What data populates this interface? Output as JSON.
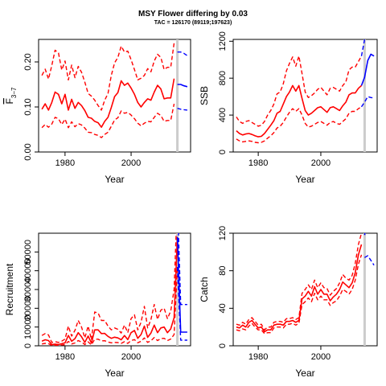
{
  "title": "MSY Flower differing by 0.03",
  "subtitle": "TAC = 126170 (89119;197623)",
  "colors": {
    "hist": "#ff0000",
    "proj": "#0000ff",
    "marker": "#cccccc"
  },
  "marker_year": 2014,
  "chart_data": [
    {
      "type": "line",
      "name": "F",
      "xlabel": "Year",
      "ylabel_main": "F",
      "ylabel_sub": "3−7",
      "xlim": [
        1972,
        2018
      ],
      "ylim": [
        0,
        0.25
      ],
      "xticks": [
        "1980",
        "2000"
      ],
      "yticks": [
        "0.00",
        "0.10",
        "0.20"
      ],
      "x": [
        1973,
        1974,
        1975,
        1976,
        1977,
        1978,
        1979,
        1980,
        1981,
        1982,
        1983,
        1984,
        1985,
        1986,
        1987,
        1988,
        1989,
        1990,
        1991,
        1992,
        1993,
        1994,
        1995,
        1996,
        1997,
        1998,
        1999,
        2000,
        2001,
        2002,
        2003,
        2004,
        2005,
        2006,
        2007,
        2008,
        2009,
        2010,
        2011,
        2012,
        2013
      ],
      "series": [
        {
          "role": "median",
          "period": "hist",
          "values": [
            0.095,
            0.107,
            0.093,
            0.11,
            0.133,
            0.128,
            0.107,
            0.128,
            0.093,
            0.117,
            0.097,
            0.11,
            0.103,
            0.092,
            0.077,
            0.075,
            0.068,
            0.065,
            0.055,
            0.068,
            0.077,
            0.099,
            0.123,
            0.132,
            0.158,
            0.148,
            0.153,
            0.142,
            0.128,
            0.11,
            0.1,
            0.11,
            0.118,
            0.115,
            0.133,
            0.148,
            0.14,
            0.118,
            0.12,
            0.12,
            0.163
          ]
        },
        {
          "role": "lower",
          "period": "hist",
          "values": [
            0.054,
            0.061,
            0.055,
            0.062,
            0.077,
            0.074,
            0.061,
            0.073,
            0.054,
            0.067,
            0.056,
            0.063,
            0.06,
            0.053,
            0.044,
            0.043,
            0.039,
            0.037,
            0.032,
            0.039,
            0.044,
            0.057,
            0.071,
            0.076,
            0.091,
            0.086,
            0.088,
            0.082,
            0.074,
            0.064,
            0.058,
            0.064,
            0.068,
            0.067,
            0.077,
            0.086,
            0.081,
            0.068,
            0.07,
            0.07,
            0.107
          ]
        },
        {
          "role": "upper",
          "period": "hist",
          "values": [
            0.17,
            0.184,
            0.162,
            0.192,
            0.226,
            0.22,
            0.182,
            0.202,
            0.16,
            0.193,
            0.165,
            0.19,
            0.177,
            0.155,
            0.13,
            0.124,
            0.115,
            0.103,
            0.093,
            0.115,
            0.13,
            0.17,
            0.198,
            0.21,
            0.235,
            0.222,
            0.224,
            0.205,
            0.183,
            0.16,
            0.164,
            0.17,
            0.185,
            0.178,
            0.202,
            0.217,
            0.21,
            0.183,
            0.188,
            0.188,
            0.242
          ]
        }
      ],
      "proj_x": [
        2014,
        2015,
        2016,
        2017
      ],
      "proj_series": [
        {
          "role": "median",
          "values": [
            0.15,
            0.15,
            0.147,
            0.145
          ]
        },
        {
          "role": "lower",
          "values": [
            0.097,
            0.095,
            0.094,
            0.093
          ]
        },
        {
          "role": "upper",
          "values": [
            0.222,
            0.222,
            0.219,
            0.214
          ]
        }
      ]
    },
    {
      "type": "line",
      "name": "SSB",
      "xlabel": "Year",
      "ylabel_main": "SSB",
      "xlim": [
        1972,
        2018
      ],
      "ylim": [
        0,
        1220
      ],
      "xticks": [
        "1980",
        "2000"
      ],
      "yticks": [
        "0",
        "400",
        "800",
        "1200"
      ],
      "x": [
        1973,
        1974,
        1975,
        1976,
        1977,
        1978,
        1979,
        1980,
        1981,
        1982,
        1983,
        1984,
        1985,
        1986,
        1987,
        1988,
        1989,
        1990,
        1991,
        1992,
        1993,
        1994,
        1995,
        1996,
        1997,
        1998,
        1999,
        2000,
        2001,
        2002,
        2003,
        2004,
        2005,
        2006,
        2007,
        2008,
        2009,
        2010,
        2011,
        2012,
        2013
      ],
      "series": [
        {
          "role": "median",
          "period": "hist",
          "values": [
            230,
            200,
            185,
            195,
            200,
            190,
            175,
            165,
            170,
            200,
            245,
            290,
            340,
            420,
            440,
            520,
            600,
            650,
            720,
            660,
            720,
            580,
            450,
            400,
            420,
            450,
            480,
            490,
            460,
            430,
            480,
            490,
            470,
            450,
            500,
            540,
            620,
            640,
            640,
            690,
            720
          ]
        },
        {
          "role": "lower",
          "period": "hist",
          "values": [
            140,
            120,
            110,
            115,
            120,
            115,
            105,
            100,
            105,
            120,
            150,
            175,
            210,
            260,
            280,
            320,
            380,
            430,
            470,
            440,
            470,
            400,
            310,
            270,
            280,
            300,
            320,
            330,
            310,
            290,
            320,
            330,
            310,
            300,
            330,
            360,
            420,
            440,
            440,
            470,
            490
          ]
        },
        {
          "role": "upper",
          "period": "hist",
          "values": [
            380,
            330,
            310,
            330,
            340,
            320,
            300,
            280,
            290,
            330,
            400,
            450,
            520,
            630,
            650,
            740,
            880,
            960,
            1030,
            930,
            1040,
            850,
            650,
            590,
            610,
            640,
            680,
            700,
            660,
            620,
            690,
            700,
            680,
            660,
            720,
            760,
            890,
            920,
            920,
            980,
            1040
          ]
        }
      ],
      "proj_x": [
        2013,
        2014,
        2015,
        2016,
        2017
      ],
      "proj_series": [
        {
          "role": "median",
          "values": [
            720,
            810,
            990,
            1060,
            1040
          ]
        },
        {
          "role": "lower",
          "values": [
            490,
            540,
            600,
            590,
            585
          ]
        },
        {
          "role": "upper",
          "values": [
            1040,
            1220,
            1400,
            1600,
            1800
          ]
        }
      ]
    },
    {
      "type": "line",
      "name": "Recruitment",
      "xlabel": "Year",
      "ylabel_main": "Recruitment",
      "xlim": [
        1972,
        2018
      ],
      "ylim": [
        0,
        60000
      ],
      "xticks": [
        "1980",
        "2000"
      ],
      "yticks": [
        "0",
        "10000",
        "20000",
        "30000",
        "40000",
        "50000"
      ],
      "x": [
        1973,
        1974,
        1975,
        1976,
        1977,
        1978,
        1979,
        1980,
        1981,
        1982,
        1983,
        1984,
        1985,
        1986,
        1987,
        1988,
        1989,
        1990,
        1991,
        1992,
        1993,
        1994,
        1995,
        1996,
        1997,
        1998,
        1999,
        2000,
        2001,
        2002,
        2003,
        2004,
        2005,
        2006,
        2007,
        2008,
        2009,
        2010,
        2011,
        2012,
        2013,
        2014
      ],
      "series": [
        {
          "role": "median",
          "period": "hist",
          "values": [
            2500,
            3200,
            2800,
            600,
            900,
            700,
            1100,
            1600,
            5500,
            2400,
            3800,
            7000,
            4800,
            1800,
            5200,
            1400,
            8500,
            8500,
            6500,
            6600,
            5000,
            4000,
            4600,
            4200,
            3200,
            5500,
            3300,
            7000,
            8200,
            4000,
            6000,
            10500,
            4500,
            6800,
            11000,
            7000,
            9500,
            10000,
            7000,
            9000,
            15000,
            58000
          ]
        },
        {
          "role": "lower",
          "period": "hist",
          "values": [
            1000,
            1300,
            1100,
            200,
            300,
            250,
            450,
            600,
            2300,
            1000,
            1500,
            2800,
            2000,
            700,
            2100,
            500,
            3500,
            3500,
            2600,
            2700,
            2000,
            1600,
            1800,
            1700,
            1300,
            2200,
            1300,
            2800,
            3300,
            1600,
            2400,
            4200,
            1800,
            2700,
            4400,
            2800,
            3800,
            4000,
            2800,
            3600,
            6000,
            42000
          ]
        },
        {
          "role": "upper",
          "period": "hist",
          "values": [
            5500,
            6500,
            5800,
            1800,
            2200,
            1800,
            2500,
            3600,
            10500,
            5200,
            8200,
            13500,
            10000,
            4200,
            10500,
            3200,
            18000,
            17500,
            13500,
            13500,
            10500,
            8500,
            9500,
            8800,
            6800,
            11000,
            7000,
            14500,
            16500,
            8500,
            12500,
            21000,
            9500,
            14000,
            22000,
            14000,
            19000,
            20000,
            14500,
            18500,
            30000,
            78000
          ]
        }
      ],
      "proj_x": [
        2014,
        2015,
        2016,
        2017
      ],
      "proj_series": [
        {
          "role": "median",
          "values": [
            58000,
            7300,
            7300,
            7300
          ]
        },
        {
          "role": "lower",
          "values": [
            42000,
            3000,
            3000,
            3000
          ]
        },
        {
          "role": "upper",
          "values": [
            78000,
            22000,
            22000,
            22000
          ]
        }
      ]
    },
    {
      "type": "line",
      "name": "Catch",
      "xlabel": "Year",
      "ylabel_main": "Catch",
      "xlim": [
        1972,
        2018
      ],
      "ylim": [
        0,
        120
      ],
      "xticks": [
        "1980",
        "2000"
      ],
      "yticks": [
        "0",
        "40",
        "80",
        "120"
      ],
      "x": [
        1973,
        1974,
        1975,
        1976,
        1977,
        1978,
        1979,
        1980,
        1981,
        1982,
        1983,
        1984,
        1985,
        1986,
        1987,
        1988,
        1989,
        1990,
        1991,
        1992,
        1993,
        1994,
        1995,
        1996,
        1997,
        1998,
        1999,
        2000,
        2001,
        2002,
        2003,
        2004,
        2005,
        2006,
        2007,
        2008,
        2009,
        2010,
        2011,
        2012,
        2013
      ],
      "series": [
        {
          "role": "median",
          "period": "hist",
          "values": [
            20,
            19,
            22,
            20,
            25,
            27,
            23,
            19,
            20,
            15,
            17,
            17,
            22,
            23,
            23,
            22,
            26,
            26,
            27,
            25,
            27,
            50,
            53,
            58,
            53,
            63,
            55,
            60,
            55,
            55,
            48,
            52,
            55,
            60,
            68,
            65,
            62,
            67,
            78,
            97,
            108
          ]
        },
        {
          "role": "lower",
          "period": "hist",
          "values": [
            17,
            16,
            18,
            17,
            21,
            24,
            20,
            17,
            17,
            13,
            14,
            14,
            19,
            20,
            20,
            19,
            23,
            23,
            24,
            22,
            24,
            44,
            47,
            51,
            47,
            56,
            49,
            53,
            49,
            49,
            43,
            46,
            48,
            53,
            60,
            58,
            55,
            60,
            70,
            87,
            97
          ]
        },
        {
          "role": "upper",
          "period": "hist",
          "values": [
            23,
            22,
            25,
            23,
            28,
            30,
            26,
            22,
            23,
            17,
            20,
            20,
            25,
            26,
            26,
            25,
            29,
            29,
            30,
            28,
            30,
            56,
            60,
            65,
            60,
            70,
            62,
            67,
            62,
            61,
            54,
            58,
            61,
            67,
            76,
            72,
            70,
            75,
            88,
            108,
            120
          ]
        }
      ],
      "proj_x": [
        2014,
        2015,
        2016,
        2017
      ],
      "proj_series": [
        {
          "role": "median",
          "values": [
            118,
            140,
            160,
            170
          ]
        },
        {
          "role": "lower",
          "values": [
            94,
            96,
            91,
            86
          ]
        },
        {
          "role": "upper",
          "values": [
            140,
            180,
            200,
            220
          ]
        }
      ]
    }
  ]
}
